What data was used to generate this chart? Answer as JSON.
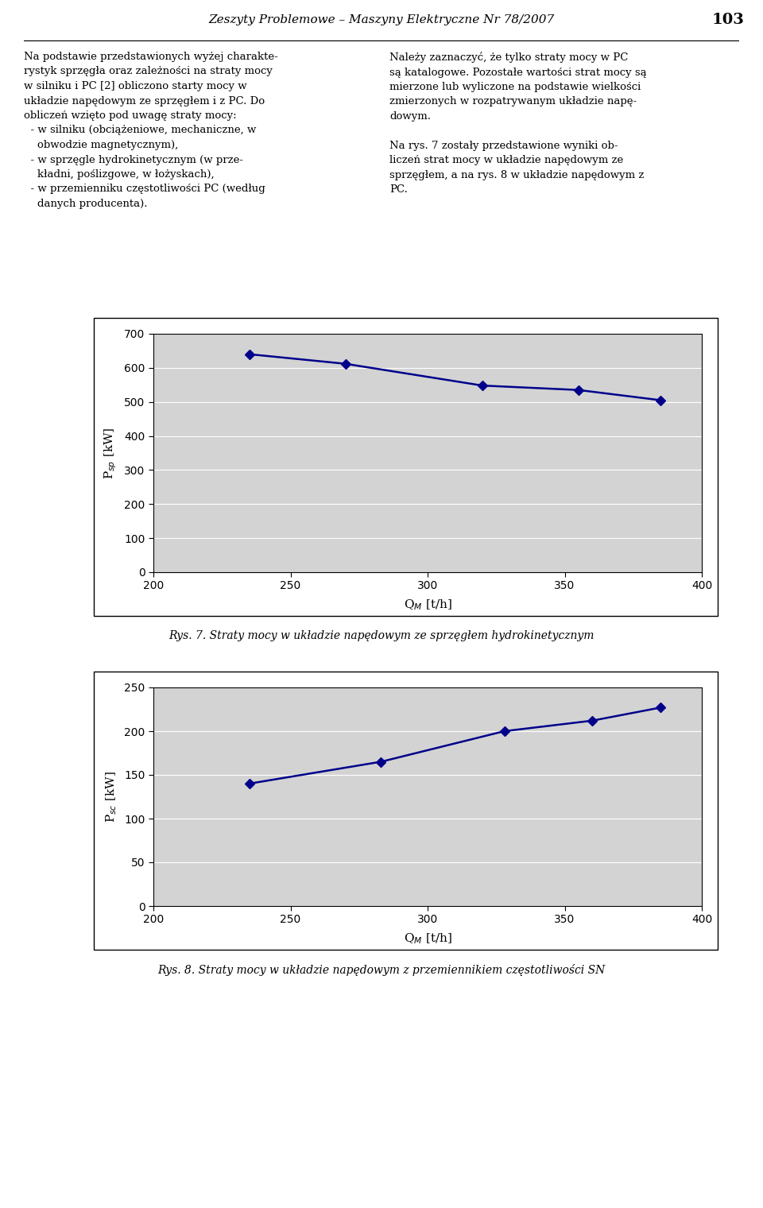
{
  "header_title": "Zeszyty Problemowe – Maszyny Elektryczne Nr 78/2007",
  "header_page": "103",
  "col1_text": "Na podstawie przedstawionych wyżej charakte-\nrystyk sprzęgła oraz zależności na straty mocy\nw silniku i PC [2] obliczono starty mocy w\nukładzie napędowym ze sprzęgłem i z PC. Do\nobliczeń wzięto pod uwagę straty mocy:\n  - w silniku (obciążeniowe, mechaniczne, w\n    obwodzie magnetycznym),\n  - w sprzęgle hydrokinetycznym (w prze-\n    kładni, poślizgowe, w łożyskach),\n  - w przemienniku częstotliwości PC (według\n    danych producenta).",
  "col2_text": "Należy zaznaczyć, że tylko straty mocy w PC\nsą katalogowe. Pozostałe wartości strat mocy są\nmierzone lub wyliczone na podstawie wielkości\nzmierzonych w rozpatrywanym układzie napę-\ndowym.\n\nNa rys. 7 zostały przedstawione wyniki ob-\nliczeń strat mocy w układzie napędowym ze\nsprzęgłem, a na rys. 8 w układzie napędowym z\nPC.",
  "chart1": {
    "x": [
      235,
      270,
      320,
      355,
      385
    ],
    "y": [
      640,
      612,
      548,
      535,
      505
    ],
    "xlabel": "Q$_M$ [t/h]",
    "ylabel": "P$_{sp}$ [kW]",
    "xlim": [
      200,
      400
    ],
    "ylim": [
      0,
      700
    ],
    "yticks": [
      0,
      100,
      200,
      300,
      400,
      500,
      600,
      700
    ],
    "xticks": [
      200,
      250,
      300,
      350,
      400
    ],
    "line_color": "#00008B",
    "bg_color": "#D3D3D3",
    "caption": "Rys. 7. Straty mocy w układzie napędowym ze sprzęgłem hydrokinetycznym"
  },
  "chart2": {
    "x": [
      235,
      283,
      328,
      360,
      385
    ],
    "y": [
      140,
      165,
      200,
      212,
      227
    ],
    "xlabel": "Q$_M$ [t/h]",
    "ylabel": "P$_{sc}$ [kW]",
    "xlim": [
      200,
      400
    ],
    "ylim": [
      0,
      250
    ],
    "yticks": [
      0,
      50,
      100,
      150,
      200,
      250
    ],
    "xticks": [
      200,
      250,
      300,
      350,
      400
    ],
    "line_color": "#00008B",
    "bg_color": "#D3D3D3",
    "caption": "Rys. 8. Straty mocy w układzie napędowym z przemiennikiem częstotliwości SN"
  },
  "page_bg": "#ffffff",
  "font_color": "#000000"
}
